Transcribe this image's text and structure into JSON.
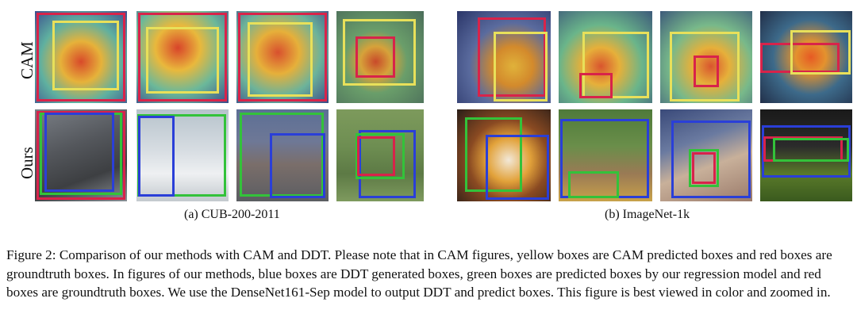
{
  "row_labels": {
    "cam": "CAM",
    "ours": "Ours"
  },
  "subcaptions": {
    "cub": "(a) CUB-200-2011",
    "imagenet": "(b) ImageNet-1k"
  },
  "caption": "Figure 2: Comparison of our methods with CAM and DDT. Please note that in CAM figures, yellow boxes are CAM predicted boxes and red boxes are groundtruth boxes. In figures of our methods, blue boxes are DDT generated boxes, green boxes are predicted boxes by our regression model and red boxes are groundtruth boxes. We use the DenseNet161-Sep model to output DDT and predict boxes. This figure is best viewed in color and zoomed in.",
  "colors": {
    "cam_box": "#e8e05a",
    "groundtruth_box": "#d8234a",
    "ddt_box": "#2a3fd8",
    "regression_box": "#33c23a"
  }
}
